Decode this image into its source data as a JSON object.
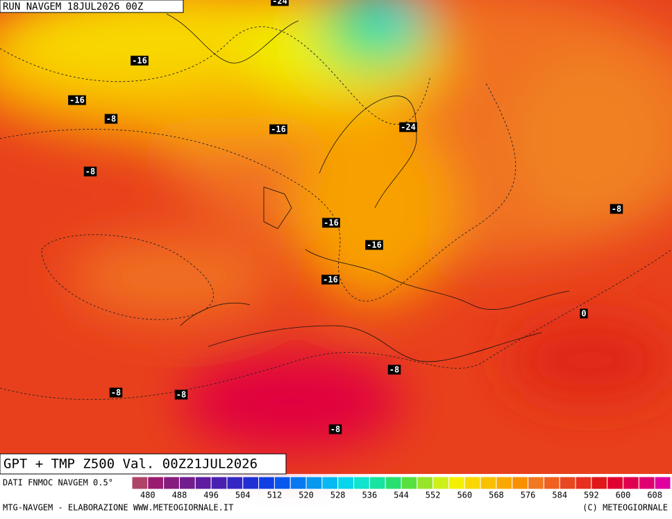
{
  "header": {
    "run": "RUN NAVGEM 18JUL2026 00Z"
  },
  "map": {
    "title": "GPT + TMP Z500 Val. 00Z21JUL2026",
    "contour_labels": [
      -24,
      -16,
      -16,
      -8,
      -16,
      -24,
      -8,
      -8,
      -16,
      -16,
      -16,
      0,
      -8,
      -8,
      -8,
      -8
    ]
  },
  "colorbar": {
    "source": "DATI FNMOC NAVGEM 0.5°",
    "ticks": [
      480,
      488,
      496,
      504,
      512,
      520,
      528,
      536,
      544,
      552,
      560,
      568,
      576,
      584,
      592,
      600,
      608
    ],
    "colors": [
      "#b04468",
      "#9a1c70",
      "#861c7e",
      "#721c8e",
      "#5e1c9e",
      "#4a20b0",
      "#3428c4",
      "#2030d4",
      "#1040e4",
      "#0858f0",
      "#0878f0",
      "#0898f0",
      "#08b8f0",
      "#08d4ec",
      "#10e4cc",
      "#18e4a0",
      "#28e070",
      "#58e040",
      "#98e428",
      "#ccf018",
      "#f4f000",
      "#f8d800",
      "#f8c000",
      "#f8a800",
      "#f89000",
      "#f07820",
      "#f06020",
      "#e84820",
      "#e83020",
      "#e01818",
      "#e00030",
      "#e00050",
      "#e00070",
      "#e000a0"
    ]
  },
  "footer": {
    "left": "MTG-NAVGEM - ELABORAZIONE WWW.METEOGIORNALE.IT",
    "right": "(C) METEOGIORNALE"
  }
}
